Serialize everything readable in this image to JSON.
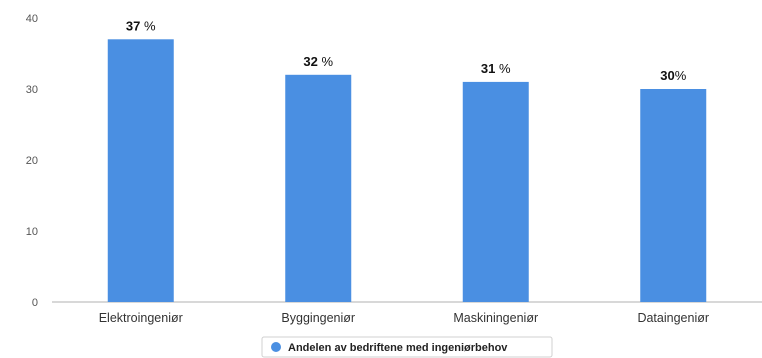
{
  "chart_data": {
    "type": "bar",
    "categories": [
      "Elektroingeniør",
      "Byggingeniør",
      "Maskiningeniør",
      "Dataingeniør"
    ],
    "series": [
      {
        "name": "Andelen av bedriftene med ingeniørbehov",
        "values": [
          37,
          32,
          31,
          30
        ]
      }
    ],
    "data_labels": [
      "37 %",
      "32 %",
      "31 %",
      "30%"
    ],
    "yticks": [
      0,
      10,
      20,
      30,
      40
    ],
    "ylim": [
      0,
      40
    ],
    "grid": false,
    "legend_position": "bottom-center",
    "colors": {
      "bar": "#4a8fe2",
      "axis": "#b0b0b0"
    }
  }
}
